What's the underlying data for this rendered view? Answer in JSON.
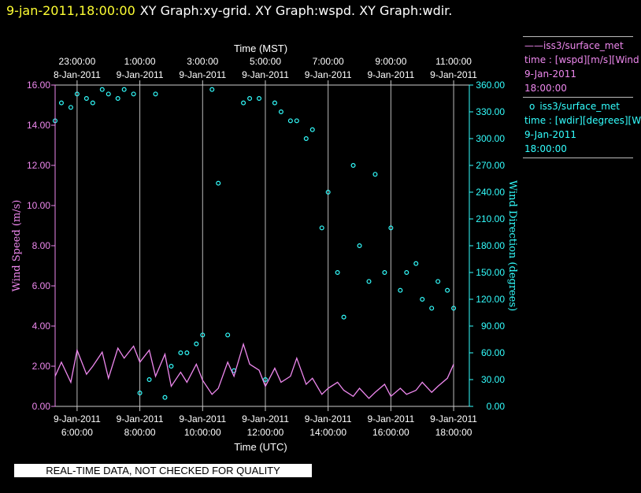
{
  "header": {
    "timestamp": "9-jan-2011,18:00:00",
    "title": "XY Graph:xy-grid.  XY Graph:wspd.  XY Graph:wdir."
  },
  "legend": {
    "entries": [
      {
        "symbol": "——",
        "name": "iss3/surface_met",
        "var": "time : [wspd][m/s][Wind",
        "date": "9-Jan-2011",
        "time": "18:00:00",
        "color": "#ee88ee"
      },
      {
        "symbol": "o",
        "name": "iss3/surface_met",
        "var": "time : [wdir][degrees][W",
        "date": "9-Jan-2011",
        "time": "18:00:00",
        "color": "#33ffff"
      }
    ]
  },
  "qc_note": "REAL-TIME DATA, NOT CHECKED FOR QUALITY",
  "chart_data": {
    "type": "line",
    "title": "",
    "x_top_label": "Time (MST)",
    "x_bottom_label": "Time (UTC)",
    "ylabel_left": "Wind Speed (m/s)",
    "ylabel_right": "Wind Direction (degrees)",
    "x_range_utc_hours": [
      5.3,
      18.5
    ],
    "ylim_left": [
      0,
      16
    ],
    "ylim_right": [
      0,
      360
    ],
    "grid": "vertical lines at bottom ticks",
    "top_ticks": [
      {
        "h": 6,
        "date": "8-Jan-2011",
        "time": "23:00:00"
      },
      {
        "h": 8,
        "date": "9-Jan-2011",
        "time": "1:00:00"
      },
      {
        "h": 10,
        "date": "9-Jan-2011",
        "time": "3:00:00"
      },
      {
        "h": 12,
        "date": "9-Jan-2011",
        "time": "5:00:00"
      },
      {
        "h": 14,
        "date": "9-Jan-2011",
        "time": "7:00:00"
      },
      {
        "h": 16,
        "date": "9-Jan-2011",
        "time": "9:00:00"
      },
      {
        "h": 18,
        "date": "9-Jan-2011",
        "time": "11:00:00"
      }
    ],
    "bottom_ticks": [
      {
        "h": 6,
        "date": "9-Jan-2011",
        "time": "6:00:00"
      },
      {
        "h": 8,
        "date": "9-Jan-2011",
        "time": "8:00:00"
      },
      {
        "h": 10,
        "date": "9-Jan-2011",
        "time": "10:00:00"
      },
      {
        "h": 12,
        "date": "9-Jan-2011",
        "time": "12:00:00"
      },
      {
        "h": 14,
        "date": "9-Jan-2011",
        "time": "14:00:00"
      },
      {
        "h": 16,
        "date": "9-Jan-2011",
        "time": "16:00:00"
      },
      {
        "h": 18,
        "date": "9-Jan-2011",
        "time": "18:00:00"
      }
    ],
    "left_ticks": [
      {
        "v": 0,
        "label": "0.00"
      },
      {
        "v": 2,
        "label": "2.00"
      },
      {
        "v": 4,
        "label": "4.00"
      },
      {
        "v": 6,
        "label": "6.00"
      },
      {
        "v": 8,
        "label": "8.00"
      },
      {
        "v": 10,
        "label": "10.00"
      },
      {
        "v": 12,
        "label": "12.00"
      },
      {
        "v": 14,
        "label": "14.00"
      },
      {
        "v": 16,
        "label": "16.00"
      }
    ],
    "right_ticks": [
      {
        "v": 0,
        "label": "0.00"
      },
      {
        "v": 30,
        "label": "30.00"
      },
      {
        "v": 60,
        "label": "60.00"
      },
      {
        "v": 90,
        "label": "90.00"
      },
      {
        "v": 120,
        "label": "120.00"
      },
      {
        "v": 150,
        "label": "150.00"
      },
      {
        "v": 180,
        "label": "180.00"
      },
      {
        "v": 210,
        "label": "210.00"
      },
      {
        "v": 240,
        "label": "240.00"
      },
      {
        "v": 270,
        "label": "270.00"
      },
      {
        "v": 300,
        "label": "300.00"
      },
      {
        "v": 330,
        "label": "330.00"
      },
      {
        "v": 360,
        "label": "360.00"
      }
    ],
    "series": [
      {
        "name": "iss3/surface_met time : [wspd][m/s][Wind",
        "axis": "left",
        "style": "line",
        "color": "#ee88ee",
        "x_utc_hours": [
          5.3,
          5.5,
          5.8,
          6.0,
          6.3,
          6.5,
          6.8,
          7.0,
          7.3,
          7.5,
          7.8,
          8.0,
          8.3,
          8.5,
          8.8,
          9.0,
          9.3,
          9.5,
          9.8,
          10.0,
          10.3,
          10.5,
          10.8,
          11.0,
          11.3,
          11.5,
          11.8,
          12.0,
          12.3,
          12.5,
          12.8,
          13.0,
          13.3,
          13.5,
          13.8,
          14.0,
          14.3,
          14.5,
          14.8,
          15.0,
          15.3,
          15.5,
          15.8,
          16.0,
          16.3,
          16.5,
          16.8,
          17.0,
          17.3,
          17.5,
          17.8,
          18.0
        ],
        "values": [
          1.5,
          2.2,
          1.2,
          2.8,
          1.6,
          2.0,
          2.7,
          1.4,
          2.9,
          2.4,
          3.0,
          2.2,
          2.8,
          1.5,
          2.6,
          1.0,
          1.7,
          1.2,
          2.1,
          1.3,
          0.6,
          0.9,
          2.2,
          1.5,
          3.1,
          2.1,
          1.8,
          1.0,
          1.9,
          1.2,
          1.5,
          2.4,
          1.1,
          1.4,
          0.6,
          0.9,
          1.2,
          0.8,
          0.5,
          0.9,
          0.4,
          0.7,
          1.1,
          0.5,
          0.9,
          0.6,
          0.8,
          1.2,
          0.7,
          1.0,
          1.4,
          2.1
        ]
      },
      {
        "name": "iss3/surface_met time : [wdir][degrees][W",
        "axis": "right",
        "style": "scatter",
        "color": "#33ffff",
        "x_utc_hours": [
          5.3,
          5.5,
          5.8,
          6.0,
          6.3,
          6.5,
          6.8,
          7.0,
          7.3,
          7.5,
          7.8,
          8.0,
          8.3,
          8.5,
          8.8,
          9.0,
          9.3,
          9.5,
          9.8,
          10.0,
          10.3,
          10.5,
          10.8,
          11.0,
          11.3,
          11.5,
          11.8,
          12.0,
          12.3,
          12.5,
          12.8,
          13.0,
          13.3,
          13.5,
          13.8,
          14.0,
          14.3,
          14.5,
          14.8,
          15.0,
          15.3,
          15.5,
          15.8,
          16.0,
          16.3,
          16.5,
          16.8,
          17.0,
          17.3,
          17.5,
          17.8,
          18.0
        ],
        "values": [
          320,
          340,
          335,
          350,
          345,
          340,
          355,
          350,
          345,
          355,
          350,
          15,
          30,
          350,
          10,
          45,
          60,
          60,
          70,
          80,
          355,
          250,
          80,
          40,
          340,
          345,
          345,
          30,
          340,
          330,
          320,
          320,
          300,
          310,
          200,
          240,
          150,
          100,
          270,
          180,
          140,
          260,
          150,
          200,
          130,
          150,
          160,
          120,
          110,
          140,
          130,
          110
        ]
      }
    ]
  }
}
